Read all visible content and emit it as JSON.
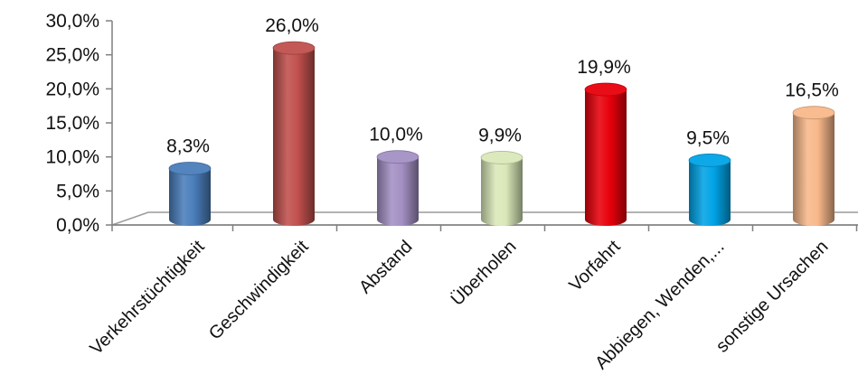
{
  "chart_data": {
    "type": "bar",
    "title": "",
    "xlabel": "",
    "ylabel": "",
    "ylim": [
      0,
      30
    ],
    "y_tick_values": [
      0,
      5,
      10,
      15,
      20,
      25,
      30
    ],
    "y_tick_labels": [
      "0,0%",
      "5,0%",
      "10,0%",
      "15,0%",
      "20,0%",
      "25,0%",
      "30,0%"
    ],
    "categories": [
      "Verkehrstüchtigkeit",
      "Geschwindigkeit",
      "Abstand",
      "Überholen",
      "Vorfahrt",
      "Abbiegen, Wenden,...",
      "sonstige Ursachen"
    ],
    "values": [
      8.3,
      26.0,
      10.0,
      9.9,
      19.9,
      9.5,
      16.5
    ],
    "data_labels": [
      "8,3%",
      "26,0%",
      "10,0%",
      "9,9%",
      "19,9%",
      "9,5%",
      "16,5%"
    ],
    "bar_colors": [
      "#4a7ebb",
      "#c0504d",
      "#a390c4",
      "#d9e8b8",
      "#e8000b",
      "#00a3e6",
      "#f8b88a"
    ],
    "grid": false,
    "legend": "none"
  }
}
